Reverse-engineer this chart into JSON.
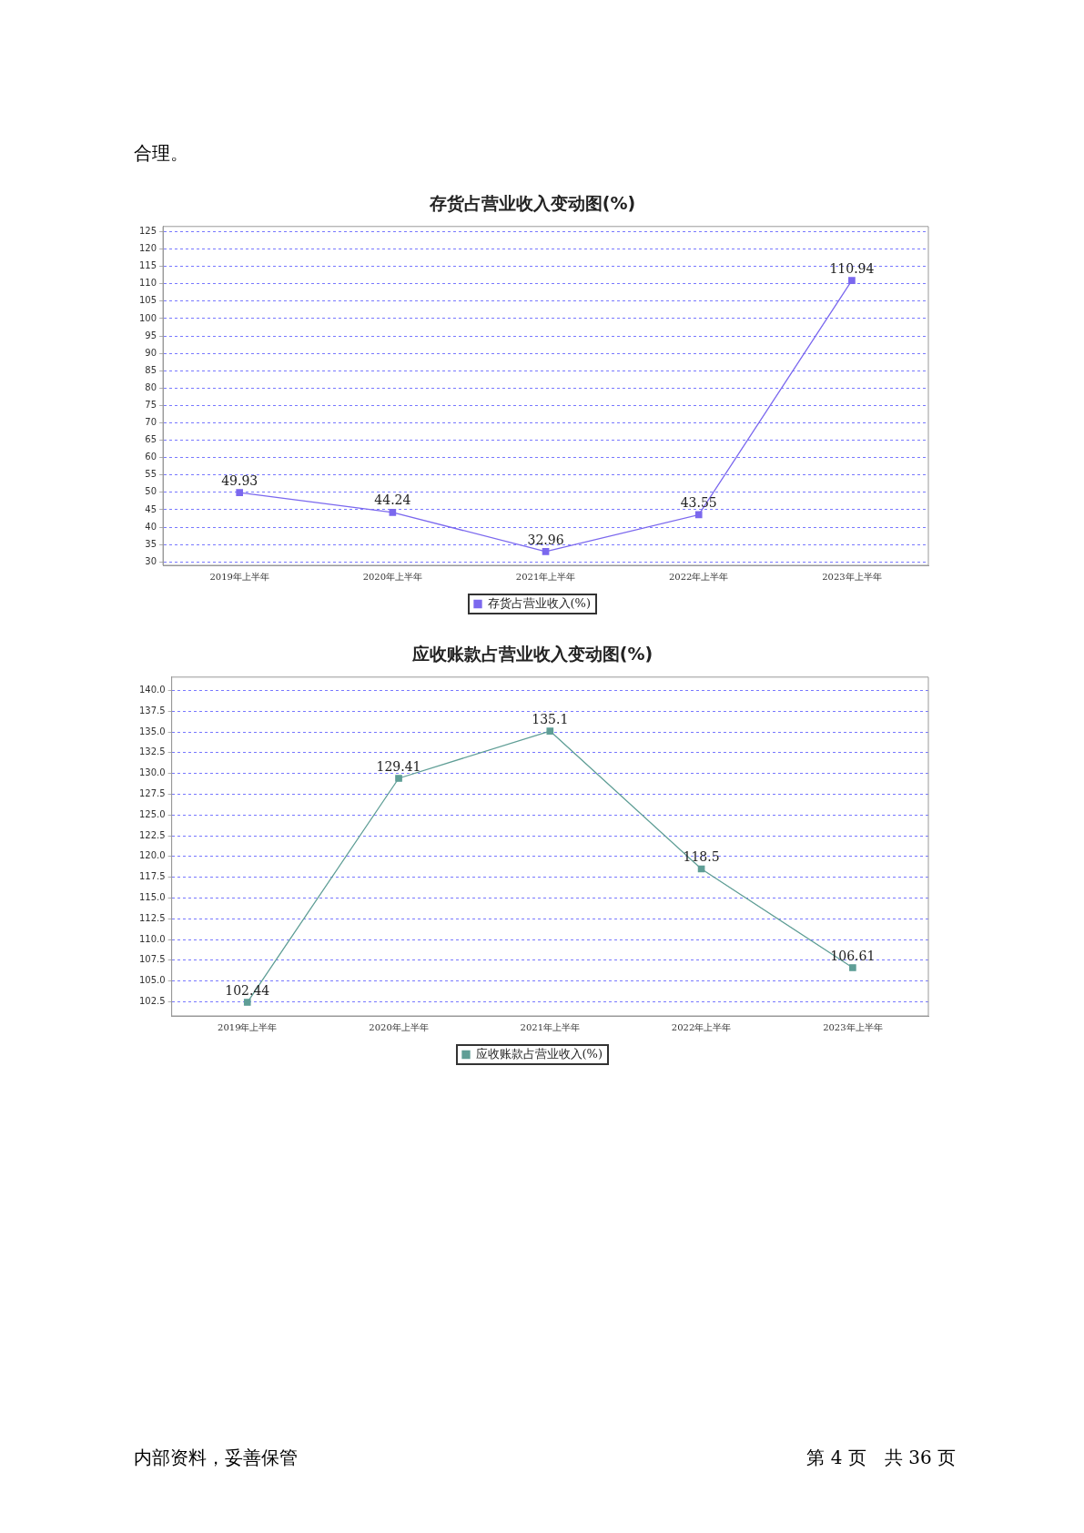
{
  "chart_data": [
    {
      "type": "line",
      "title": "存货占营业收入变动图(%)",
      "categories": [
        "2019年上半年",
        "2020年上半年",
        "2021年上半年",
        "2022年上半年",
        "2023年上半年"
      ],
      "series": [
        {
          "name": "存货占营业收入(%)",
          "color": "#7b68ee",
          "values": [
            49.93,
            44.24,
            32.96,
            43.55,
            110.94
          ]
        }
      ],
      "ylim": [
        29,
        126.5
      ],
      "yticks": [
        30,
        35,
        40,
        45,
        50,
        55,
        60,
        65,
        70,
        75,
        80,
        85,
        90,
        95,
        100,
        105,
        110,
        115,
        120,
        125
      ],
      "grid": "y",
      "legend": "bottom",
      "marker": "square",
      "data_labels": true,
      "annotations": [
        "合理。"
      ]
    },
    {
      "type": "line",
      "title": "应收账款占营业收入变动图(%)",
      "categories": [
        "2019年上半年",
        "2020年上半年",
        "2021年上半年",
        "2022年上半年",
        "2023年上半年"
      ],
      "series": [
        {
          "name": "应收账款占营业收入(%)",
          "color": "#5f9e96",
          "values": [
            102.44,
            129.41,
            135.1,
            118.5,
            106.61
          ]
        }
      ],
      "ylim": [
        100.8,
        141.6
      ],
      "yticks": [
        {
          "value": 102.5,
          "label": "102.5"
        },
        {
          "value": 105,
          "label": "105.0"
        },
        {
          "value": 107.5,
          "label": "107.5"
        },
        {
          "value": 110,
          "label": "110.0"
        },
        {
          "value": 112.5,
          "label": "112.5"
        },
        {
          "value": 115,
          "label": "115.0"
        },
        {
          "value": 117.5,
          "label": "117.5"
        },
        {
          "value": 120,
          "label": "120.0"
        },
        {
          "value": 122.5,
          "label": "122.5"
        },
        {
          "value": 125,
          "label": "125.0"
        },
        {
          "value": 127.5,
          "label": "127.5"
        },
        {
          "value": 130,
          "label": "130.0"
        },
        {
          "value": 132.5,
          "label": "132.5"
        },
        {
          "value": 135,
          "label": "135.0"
        },
        {
          "value": 137.5,
          "label": "137.5"
        },
        {
          "value": 140,
          "label": "140.0"
        }
      ],
      "grid": "y",
      "legend": "bottom",
      "marker": "square",
      "data_labels": true,
      "annotations": [
        "内部资料，妥善保管",
        "第 4 页　共 36 页"
      ]
    }
  ]
}
